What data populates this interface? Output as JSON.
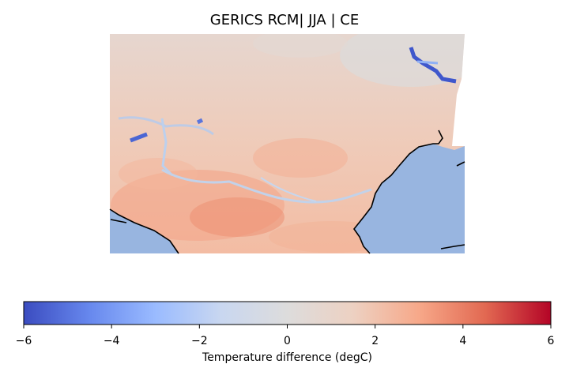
{
  "title": "GERICS RCM| JJA | CE",
  "colorbar": {
    "label": "Temperature difference (degC)",
    "min": -6,
    "max": 6,
    "ticks": [
      {
        "value": -6,
        "label": "−6"
      },
      {
        "value": -4,
        "label": "−4"
      },
      {
        "value": -2,
        "label": "−2"
      },
      {
        "value": 0,
        "label": "0"
      },
      {
        "value": 2,
        "label": "2"
      },
      {
        "value": 4,
        "label": "4"
      },
      {
        "value": 6,
        "label": "6"
      }
    ],
    "colormap": "coolwarm",
    "colors": [
      "#3b4cc0",
      "#6788ee",
      "#9abbff",
      "#c9d7f0",
      "#dddcdc",
      "#edd1c2",
      "#f7a889",
      "#e26952",
      "#b40426"
    ]
  },
  "map": {
    "sea_color": "#98b5e0",
    "coastline_color": "#000000",
    "field_mean_color": "#f0c9b5"
  }
}
